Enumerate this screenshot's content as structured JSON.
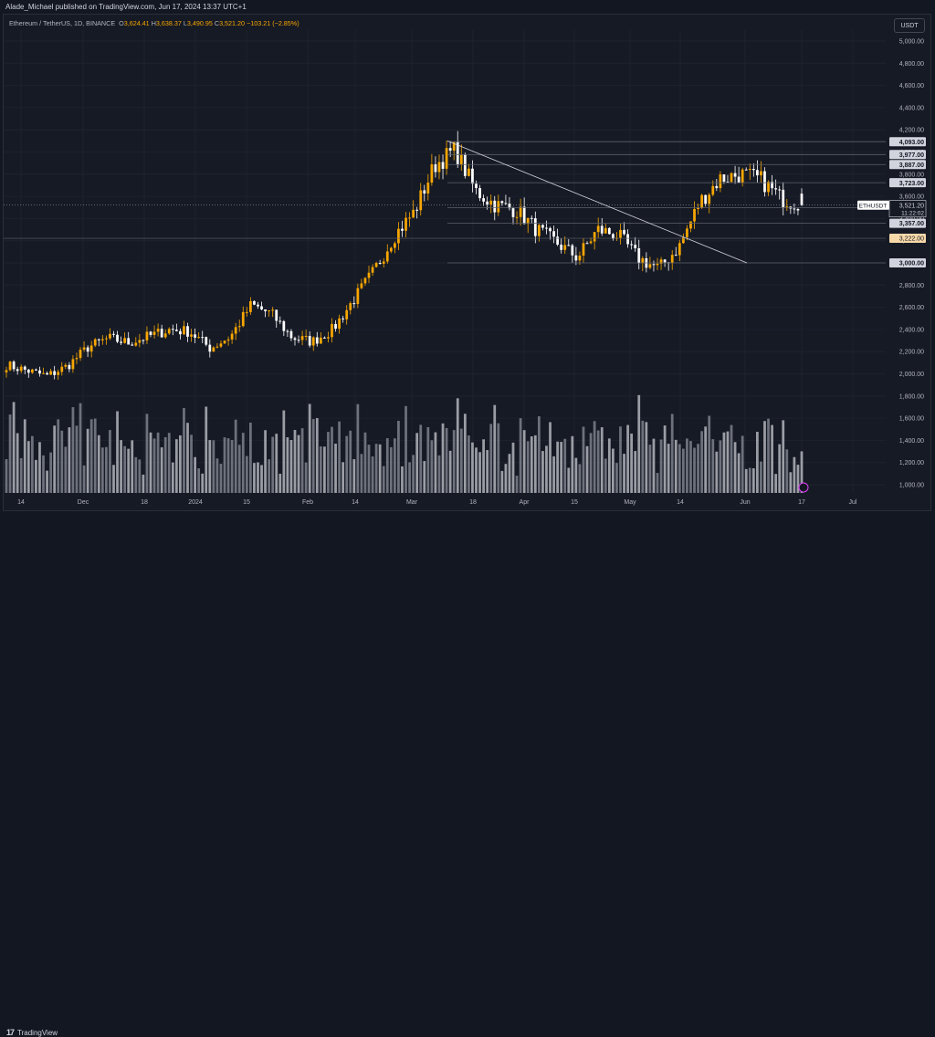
{
  "header": {
    "publisher_text": "Alade_Michael published on TradingView.com, Jun 17, 2024 13:37 UTC+1"
  },
  "legend": {
    "symbol": "Ethereum / TetherUS, 1D, BINANCE",
    "open_label": "O",
    "open": "3,624.41",
    "high_label": "H",
    "high": "3,638.37",
    "low_label": "L",
    "low": "3,490.95",
    "close_label": "C",
    "close": "3,521.20",
    "change": "−103.21 (−2.85%)"
  },
  "currency": "USDT",
  "footer": {
    "logo_mark": "17",
    "logo_text": "TradingView"
  },
  "colors": {
    "up": "#f7a600",
    "down": "#ffffff",
    "background": "#161a25",
    "grid": "#1e222d",
    "level_line": "#5d606b"
  },
  "chart_data": {
    "type": "candlestick",
    "symbol": "ETHUSDT",
    "ylim": [
      900,
      5050
    ],
    "y_ticks": [
      "1,000.00",
      "1,200.00",
      "1,400.00",
      "1,600.00",
      "1,800.00",
      "2,000.00",
      "2,200.00",
      "2,400.00",
      "2,600.00",
      "2,800.00",
      "3,000.00",
      "3,200.00",
      "3,400.00",
      "3,600.00",
      "3,800.00",
      "4,000.00",
      "4,200.00",
      "4,400.00",
      "4,600.00",
      "4,800.00",
      "5,000.00"
    ],
    "x_ticks": [
      "14",
      "Dec",
      "18",
      "2024",
      "15",
      "Feb",
      "14",
      "Mar",
      "18",
      "Apr",
      "15",
      "May",
      "14",
      "Jun",
      "17",
      "Jul"
    ],
    "levels": [
      {
        "label": "4,093.00",
        "value": 4093
      },
      {
        "label": "3,977.00",
        "value": 3977
      },
      {
        "label": "3,887.00",
        "value": 3887
      },
      {
        "label": "3,723.00",
        "value": 3723
      },
      {
        "label": "3,498.00",
        "value": 3498
      },
      {
        "label": "3,357.00",
        "value": 3357
      },
      {
        "label": "3,000.00",
        "value": 3000
      }
    ],
    "highlight_level": {
      "label": "3,222.00",
      "value": 3222
    },
    "current_price": {
      "symbol": "ETHUSDT",
      "price": "3,521.20",
      "countdown": "11:22:02",
      "value": 3521
    },
    "trendline": [
      {
        "x": -106,
        "y": 4100
      },
      {
        "x": 0,
        "y": 3000
      }
    ],
    "weekly_closes": [
      2080,
      2030,
      1980,
      2070,
      2240,
      2320,
      2280,
      2340,
      2400,
      2380,
      2230,
      2340,
      2620,
      2540,
      2330,
      2290,
      2400,
      2660,
      2920,
      3240,
      3460,
      3880,
      4020,
      3650,
      3520,
      3480,
      3300,
      3180,
      3050,
      3300,
      3250,
      3040,
      2950,
      3150,
      3550,
      3760,
      3800,
      3750,
      3580,
      3530
    ]
  }
}
